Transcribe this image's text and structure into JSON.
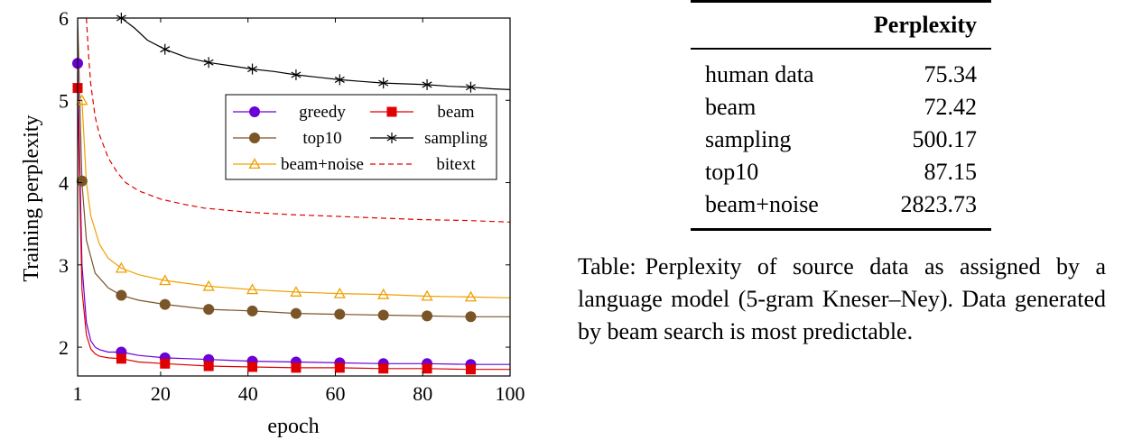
{
  "chart_data": {
    "type": "line",
    "xlabel": "epoch",
    "ylabel": "Training perplexity",
    "xlim": [
      1,
      100
    ],
    "ylim": [
      1.65,
      6
    ],
    "xticks": [
      1,
      20,
      40,
      60,
      80,
      100
    ],
    "yticks": [
      2,
      3,
      4,
      5,
      6
    ],
    "grid": false,
    "legend_position": "upper-right",
    "series": [
      {
        "name": "greedy",
        "color": "#6b00d7",
        "marker": "circle",
        "dash": false,
        "x": [
          1,
          2,
          3,
          4,
          5,
          6,
          8,
          11,
          15,
          21,
          31,
          41,
          51,
          61,
          71,
          81,
          91,
          100
        ],
        "y": [
          5.45,
          3.0,
          2.3,
          2.08,
          2.0,
          1.97,
          1.94,
          1.94,
          1.9,
          1.87,
          1.85,
          1.83,
          1.82,
          1.81,
          1.8,
          1.8,
          1.79,
          1.79
        ],
        "marker_x": [
          1,
          11,
          21,
          31,
          41,
          51,
          61,
          71,
          81,
          91
        ],
        "marker_y": [
          5.45,
          1.94,
          1.87,
          1.85,
          1.83,
          1.82,
          1.81,
          1.8,
          1.8,
          1.79
        ]
      },
      {
        "name": "beam",
        "color": "#e00000",
        "marker": "square",
        "dash": false,
        "x": [
          1,
          2,
          3,
          4,
          5,
          6,
          8,
          11,
          15,
          21,
          31,
          41,
          51,
          61,
          71,
          81,
          91,
          100
        ],
        "y": [
          5.15,
          2.7,
          2.15,
          1.98,
          1.92,
          1.89,
          1.87,
          1.86,
          1.82,
          1.8,
          1.77,
          1.76,
          1.75,
          1.75,
          1.74,
          1.74,
          1.73,
          1.73
        ],
        "marker_x": [
          1,
          11,
          21,
          31,
          41,
          51,
          61,
          71,
          81,
          91
        ],
        "marker_y": [
          5.15,
          1.86,
          1.8,
          1.77,
          1.76,
          1.75,
          1.75,
          1.74,
          1.74,
          1.73
        ]
      },
      {
        "name": "top10",
        "color": "#7a5528",
        "marker": "circle",
        "dash": false,
        "x": [
          1,
          2,
          3,
          5,
          8,
          11,
          15,
          21,
          31,
          41,
          51,
          61,
          71,
          81,
          91,
          100
        ],
        "y": [
          6.0,
          4.0,
          3.3,
          2.9,
          2.72,
          2.63,
          2.57,
          2.52,
          2.46,
          2.44,
          2.41,
          2.4,
          2.39,
          2.38,
          2.37,
          2.37
        ],
        "marker_x": [
          2,
          11,
          21,
          31,
          41,
          51,
          61,
          71,
          81,
          91
        ],
        "marker_y": [
          4.02,
          2.63,
          2.52,
          2.46,
          2.44,
          2.41,
          2.4,
          2.39,
          2.38,
          2.37
        ]
      },
      {
        "name": "sampling",
        "color": "#000000",
        "marker": "star",
        "dash": false,
        "x": [
          11,
          14,
          17,
          21,
          26,
          31,
          36,
          41,
          46,
          51,
          56,
          61,
          66,
          71,
          76,
          81,
          86,
          91,
          96,
          100
        ],
        "y": [
          6.0,
          5.88,
          5.73,
          5.62,
          5.52,
          5.46,
          5.42,
          5.38,
          5.35,
          5.31,
          5.28,
          5.25,
          5.23,
          5.21,
          5.2,
          5.19,
          5.17,
          5.16,
          5.14,
          5.13
        ],
        "marker_x": [
          11,
          21,
          31,
          41,
          51,
          61,
          71,
          81,
          91
        ],
        "marker_y": [
          6.0,
          5.62,
          5.46,
          5.38,
          5.31,
          5.25,
          5.21,
          5.19,
          5.16
        ]
      },
      {
        "name": "beam+noise",
        "color": "#f0a000",
        "marker": "triangle",
        "dash": false,
        "x": [
          2,
          3,
          4,
          6,
          8,
          11,
          15,
          21,
          31,
          41,
          51,
          61,
          71,
          81,
          91,
          100
        ],
        "y": [
          5.0,
          4.0,
          3.6,
          3.25,
          3.08,
          2.96,
          2.88,
          2.81,
          2.74,
          2.7,
          2.67,
          2.65,
          2.64,
          2.62,
          2.61,
          2.6
        ],
        "marker_x": [
          2,
          11,
          21,
          31,
          41,
          51,
          61,
          71,
          81,
          91
        ],
        "marker_y": [
          5.0,
          2.96,
          2.81,
          2.74,
          2.7,
          2.67,
          2.65,
          2.64,
          2.62,
          2.61
        ]
      },
      {
        "name": "bitext",
        "color": "#e00000",
        "marker": "none",
        "dash": true,
        "x": [
          3,
          3.5,
          4,
          5,
          6,
          8,
          10,
          12,
          15,
          20,
          25,
          30,
          40,
          50,
          60,
          70,
          80,
          90,
          100
        ],
        "y": [
          6.0,
          5.55,
          5.2,
          4.8,
          4.58,
          4.3,
          4.13,
          4.0,
          3.9,
          3.8,
          3.74,
          3.69,
          3.64,
          3.61,
          3.59,
          3.57,
          3.55,
          3.54,
          3.52
        ],
        "marker_x": [],
        "marker_y": []
      }
    ]
  },
  "table": {
    "header": [
      "",
      "Perplexity"
    ],
    "rows": [
      {
        "name": "human data",
        "value": "75.34"
      },
      {
        "name": "beam",
        "value": "72.42"
      },
      {
        "name": "sampling",
        "value": "500.17"
      },
      {
        "name": "top10",
        "value": "87.15"
      },
      {
        "name": "beam+noise",
        "value": "2823.73"
      }
    ]
  },
  "caption": {
    "label": "Table:",
    "text": "Perplexity of source data as assigned by a language model (5-gram Kneser–Ney). Data generated by beam search is most predictable."
  }
}
